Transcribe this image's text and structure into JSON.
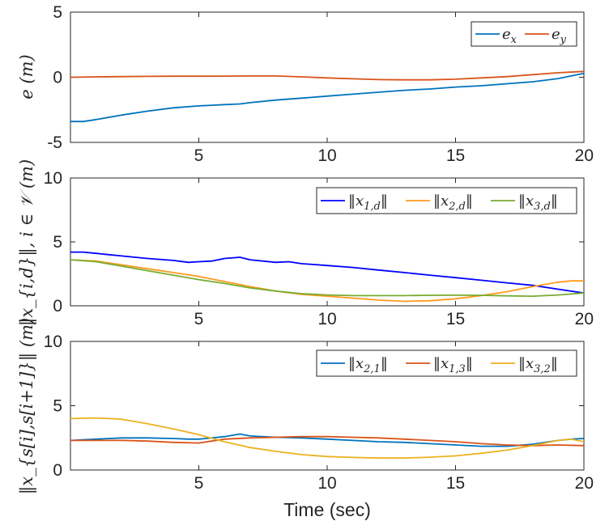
{
  "xlabel": "Time (sec)",
  "chart_data": [
    {
      "type": "line",
      "ylabel": "e (m)",
      "xlim": [
        0,
        20
      ],
      "ylim": [
        -5,
        5
      ],
      "xticks": [
        5,
        10,
        15,
        20
      ],
      "yticks": [
        -5,
        0,
        5
      ],
      "xtick_labels": [
        "5",
        "10",
        "15",
        "20"
      ],
      "ytick_labels": [
        "-5",
        "0",
        "5"
      ],
      "legend_position": "top-right",
      "series": [
        {
          "name": "e_x",
          "label_main": "e",
          "label_sub": "x",
          "color": "#0072BD",
          "x": [
            0,
            0.5,
            1,
            2,
            3,
            4,
            5,
            6,
            6.6,
            7,
            8,
            9,
            10,
            11,
            12,
            13,
            14,
            15,
            16,
            17,
            18,
            19,
            19.5,
            20
          ],
          "y": [
            -3.4,
            -3.4,
            -3.25,
            -2.9,
            -2.6,
            -2.35,
            -2.2,
            -2.1,
            -2.05,
            -1.95,
            -1.75,
            -1.6,
            -1.45,
            -1.3,
            -1.15,
            -1.0,
            -0.9,
            -0.75,
            -0.65,
            -0.5,
            -0.35,
            -0.1,
            0.1,
            0.3
          ]
        },
        {
          "name": "e_y",
          "label_main": "e",
          "label_sub": "y",
          "color": "#D95319",
          "x": [
            0,
            1,
            2,
            3,
            4,
            5,
            6,
            7,
            8,
            9,
            10,
            11,
            12,
            13,
            14,
            15,
            16,
            17,
            18,
            19,
            20
          ],
          "y": [
            0,
            0.03,
            0.05,
            0.07,
            0.08,
            0.08,
            0.09,
            0.1,
            0.1,
            0.03,
            -0.05,
            -0.12,
            -0.18,
            -0.2,
            -0.2,
            -0.15,
            -0.05,
            0.05,
            0.2,
            0.35,
            0.45
          ]
        }
      ]
    },
    {
      "type": "line",
      "ylabel": "‖x_{i,d}‖, i ∈ 𝒱 (m)",
      "xlim": [
        0,
        20
      ],
      "ylim": [
        0,
        10
      ],
      "xticks": [
        5,
        10,
        15,
        20
      ],
      "yticks": [
        0,
        5,
        10
      ],
      "xtick_labels": [
        "5",
        "10",
        "15",
        "20"
      ],
      "ytick_labels": [
        "0",
        "5",
        "10"
      ],
      "legend_position": "top-right",
      "series": [
        {
          "name": "‖x1,d‖",
          "label_main": "x",
          "label_sub": "1,d",
          "color": "#0000FF",
          "x": [
            0,
            0.5,
            1,
            2,
            3,
            4,
            4.6,
            5,
            5.5,
            6,
            6.6,
            7,
            8,
            8.5,
            9,
            10,
            11,
            12,
            13,
            14,
            15,
            16,
            17,
            18,
            19,
            20
          ],
          "y": [
            4.2,
            4.2,
            4.1,
            3.9,
            3.7,
            3.55,
            3.4,
            3.45,
            3.5,
            3.7,
            3.8,
            3.6,
            3.4,
            3.45,
            3.3,
            3.15,
            3.0,
            2.8,
            2.6,
            2.4,
            2.2,
            2.0,
            1.8,
            1.6,
            1.3,
            1.0
          ]
        },
        {
          "name": "‖x2,d‖",
          "label_main": "x",
          "label_sub": "2,d",
          "color": "#FF9A1F",
          "x": [
            0,
            1,
            2,
            3,
            4,
            5,
            6,
            7,
            8,
            9,
            10,
            11,
            12,
            13,
            14,
            15,
            16,
            17,
            18,
            19,
            19.5,
            20
          ],
          "y": [
            3.6,
            3.5,
            3.2,
            2.9,
            2.6,
            2.3,
            1.9,
            1.5,
            1.15,
            0.9,
            0.75,
            0.6,
            0.45,
            0.35,
            0.4,
            0.55,
            0.8,
            1.1,
            1.5,
            1.85,
            1.95,
            1.95
          ]
        },
        {
          "name": "‖x3,d‖",
          "label_main": "x",
          "label_sub": "3,d",
          "color": "#77AC30",
          "x": [
            0,
            1,
            2,
            3,
            4,
            5,
            6,
            7,
            8,
            9,
            10,
            11,
            12,
            13,
            14,
            15,
            16,
            17,
            18,
            19,
            20
          ],
          "y": [
            3.6,
            3.45,
            3.1,
            2.75,
            2.4,
            2.05,
            1.75,
            1.4,
            1.15,
            0.95,
            0.85,
            0.8,
            0.8,
            0.8,
            0.82,
            0.83,
            0.82,
            0.78,
            0.75,
            0.85,
            1.0
          ]
        }
      ]
    },
    {
      "type": "line",
      "ylabel": "‖x_{s[i],s[i+1]}‖ (m)",
      "xlim": [
        0,
        20
      ],
      "ylim": [
        0,
        10
      ],
      "xticks": [
        5,
        10,
        15,
        20
      ],
      "yticks": [
        0,
        5,
        10
      ],
      "xtick_labels": [
        "5",
        "10",
        "15",
        "20"
      ],
      "ytick_labels": [
        "0",
        "5",
        "10"
      ],
      "legend_position": "top-right",
      "series": [
        {
          "name": "‖x2,1‖",
          "label_main": "x",
          "label_sub": "2,1",
          "color": "#0072BD",
          "x": [
            0,
            1,
            2,
            3,
            4,
            4.6,
            5,
            6,
            6.6,
            7,
            8,
            9,
            10,
            11,
            12,
            13,
            14,
            15,
            16,
            17,
            18,
            19,
            19.5,
            20
          ],
          "y": [
            2.3,
            2.4,
            2.5,
            2.5,
            2.45,
            2.4,
            2.4,
            2.6,
            2.8,
            2.65,
            2.55,
            2.5,
            2.4,
            2.3,
            2.2,
            2.15,
            2.05,
            1.95,
            1.85,
            1.85,
            2.0,
            2.3,
            2.4,
            2.45
          ]
        },
        {
          "name": "‖x1,3‖",
          "label_main": "x",
          "label_sub": "1,3",
          "color": "#D95319",
          "x": [
            0,
            1,
            2,
            3,
            4,
            5,
            6,
            7,
            8,
            9,
            10,
            11,
            12,
            13,
            14,
            15,
            16,
            17,
            18,
            19,
            20
          ],
          "y": [
            2.3,
            2.3,
            2.3,
            2.25,
            2.15,
            2.1,
            2.4,
            2.5,
            2.55,
            2.6,
            2.6,
            2.55,
            2.5,
            2.4,
            2.3,
            2.2,
            2.05,
            1.95,
            1.9,
            1.95,
            1.9
          ]
        },
        {
          "name": "‖x3,2‖",
          "label_main": "x",
          "label_sub": "3,2",
          "color": "#EDB120",
          "x": [
            0,
            1,
            2,
            3,
            4,
            5,
            6,
            7,
            8,
            9,
            10,
            11,
            12,
            13,
            14,
            15,
            16,
            17,
            18,
            19,
            19.5,
            20
          ],
          "y": [
            4.0,
            4.05,
            3.95,
            3.6,
            3.2,
            2.75,
            2.2,
            1.75,
            1.45,
            1.2,
            1.05,
            0.98,
            0.93,
            0.93,
            1.0,
            1.1,
            1.3,
            1.55,
            1.9,
            2.3,
            2.4,
            2.2
          ]
        }
      ]
    }
  ]
}
